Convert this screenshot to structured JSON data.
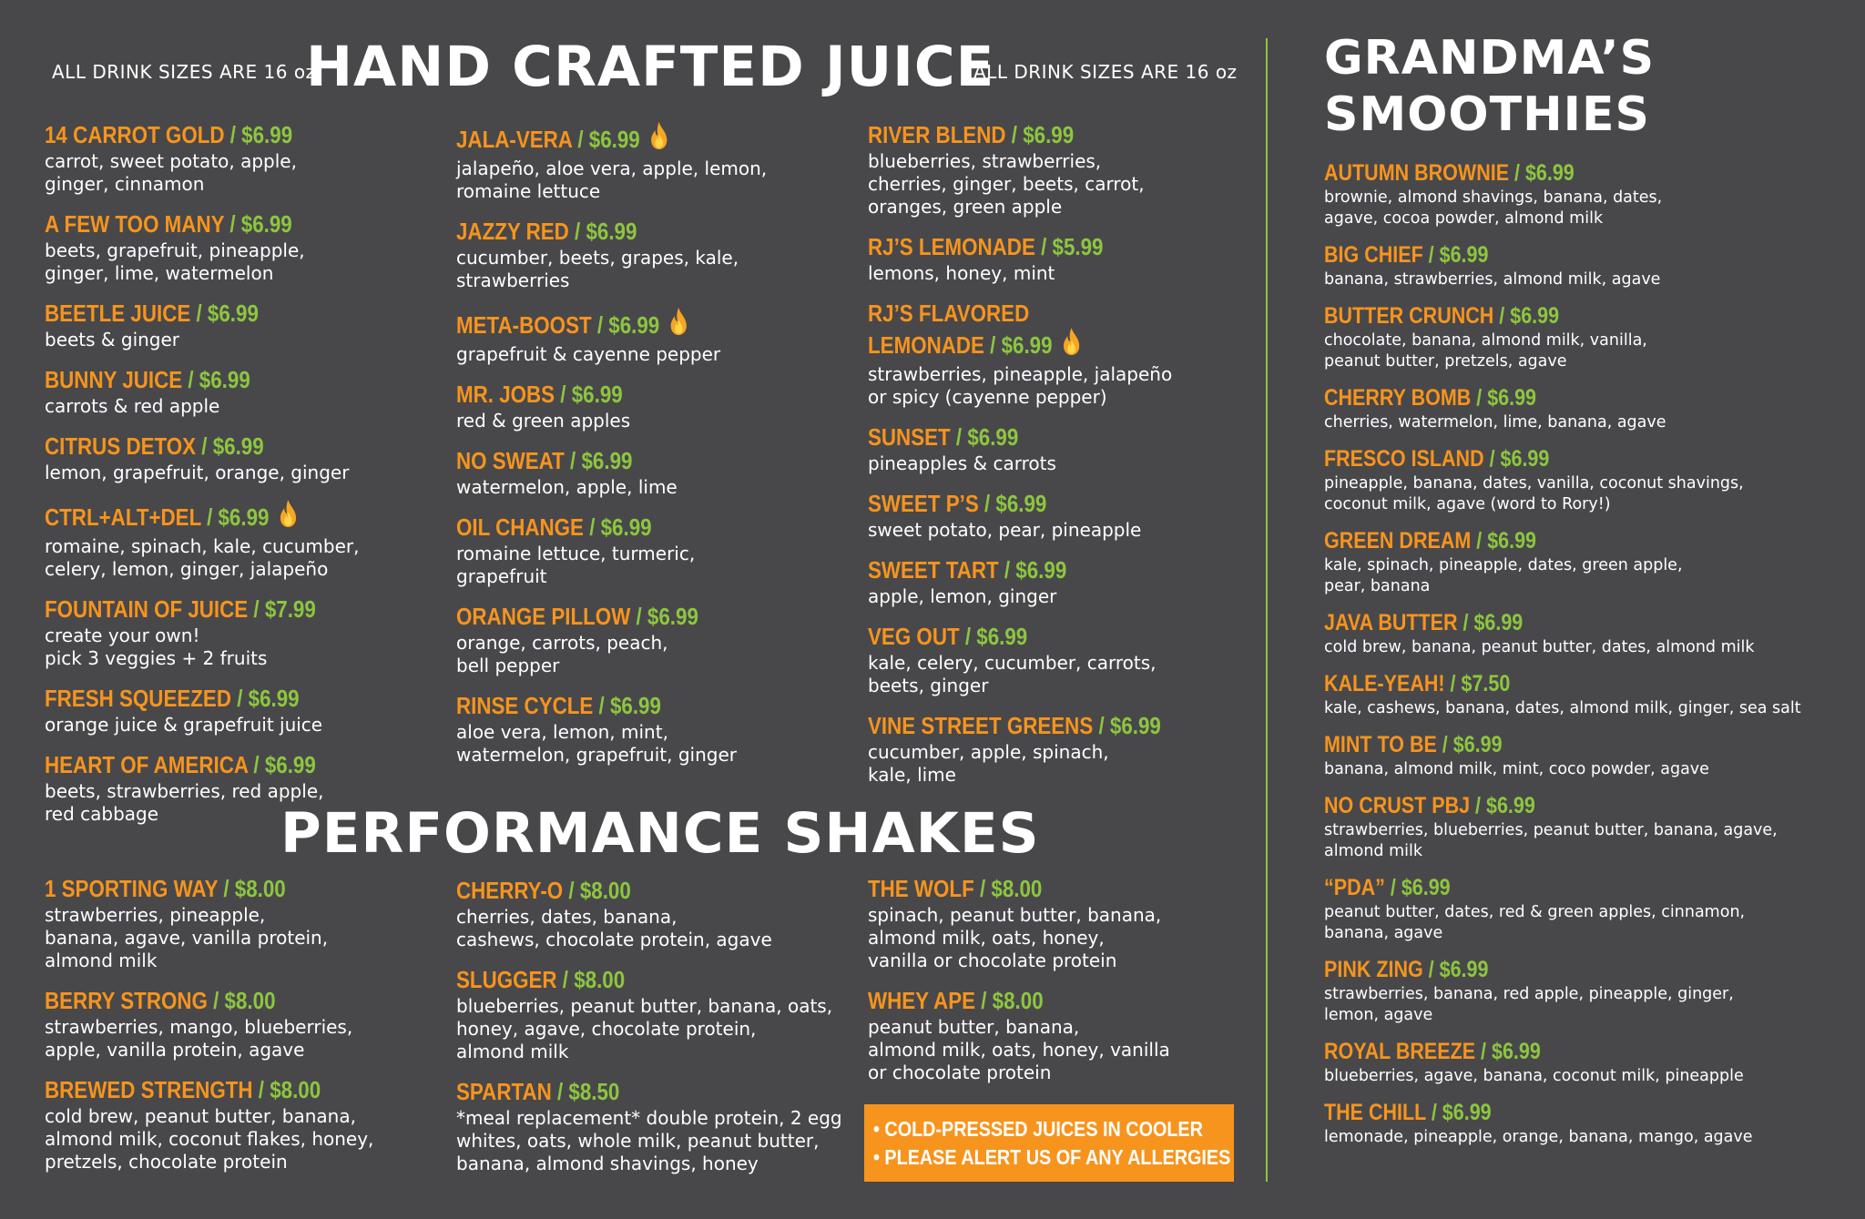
{
  "header": {
    "sizes_left": "ALL DRINK SIZES ARE 16 oz",
    "sizes_right": "ALL DRINK SIZES ARE 16 oz",
    "juice_title": "HAND CRAFTED JUICE",
    "shakes_title": "PERFORMANCE SHAKES",
    "smoothies_title_line1": "GRANDMA’S",
    "smoothies_title_line2": "SMOOTHIES"
  },
  "juice": {
    "col1": [
      {
        "name": "14 CARROT GOLD",
        "price": "$6.99",
        "desc": "carrot, sweet potato, apple,\nginger, cinnamon"
      },
      {
        "name": "A FEW TOO MANY",
        "price": "$6.99",
        "desc": "beets, grapefruit, pineapple,\nginger, lime, watermelon"
      },
      {
        "name": "BEETLE JUICE",
        "price": "$6.99",
        "desc": "beets & ginger"
      },
      {
        "name": "BUNNY  JUICE",
        "price": "$6.99",
        "desc": "carrots & red apple"
      },
      {
        "name": "CITRUS DETOX",
        "price": "$6.99",
        "desc": "lemon, grapefruit, orange, ginger"
      },
      {
        "name": "CTRL+ALT+DEL",
        "price": "$6.99",
        "desc": "romaine, spinach, kale, cucumber,\ncelery, lemon, ginger, jalapeño",
        "icon": "flame-icon"
      },
      {
        "name": "FOUNTAIN OF JUICE",
        "price": "$7.99",
        "desc": "create your own!\npick 3 veggies + 2 fruits"
      },
      {
        "name": "FRESH SQUEEZED",
        "price": "$6.99",
        "desc": "orange juice & grapefruit juice"
      },
      {
        "name": "HEART OF AMERICA",
        "price": "$6.99",
        "desc": "beets, strawberries, red apple,\nred cabbage"
      }
    ],
    "col2": [
      {
        "name": "JALA-VERA",
        "price": "$6.99",
        "desc": "jalapeño, aloe vera, apple, lemon,\nromaine lettuce",
        "icon": "flame-icon"
      },
      {
        "name": "JAZZY RED",
        "price": "$6.99",
        "desc": "cucumber, beets, grapes, kale,\nstrawberries"
      },
      {
        "name": "META-BOOST",
        "price": "$6.99",
        "desc": "grapefruit & cayenne pepper",
        "icon": "flame-icon"
      },
      {
        "name": "MR. JOBS",
        "price": "$6.99",
        "desc": "red & green apples"
      },
      {
        "name": "NO SWEAT",
        "price": "$6.99",
        "desc": "watermelon, apple, lime"
      },
      {
        "name": "OIL CHANGE",
        "price": "$6.99",
        "desc": "romaine lettuce, turmeric,\ngrapefruit"
      },
      {
        "name": "ORANGE PILLOW",
        "price": "$6.99",
        "desc": "orange, carrots, peach,\nbell pepper"
      },
      {
        "name": "RINSE CYCLE",
        "price": "$6.99",
        "desc": "aloe vera, lemon, mint,\nwatermelon, grapefruit, ginger"
      }
    ],
    "col3": [
      {
        "name": "RIVER BLEND",
        "price": "$6.99",
        "desc": "blueberries, strawberries,\ncherries, ginger, beets, carrot,\noranges, green apple"
      },
      {
        "name": "RJ’S LEMONADE",
        "price": "$5.99",
        "desc": "lemons, honey, mint"
      },
      {
        "name": "RJ’S FLAVORED",
        "name2": "LEMONADE",
        "price": "$6.99",
        "desc": "strawberries, pineapple, jalapeño\nor spicy (cayenne pepper)",
        "icon": "flame-icon"
      },
      {
        "name": "SUNSET",
        "price": "$6.99",
        "desc": "pineapples & carrots"
      },
      {
        "name": "SWEET P’S",
        "price": "$6.99",
        "desc": "sweet potato, pear, pineapple"
      },
      {
        "name": "SWEET TART",
        "price": "$6.99",
        "desc": "apple, lemon, ginger"
      },
      {
        "name": "VEG OUT",
        "price": "$6.99",
        "desc": "kale, celery, cucumber, carrots,\nbeets, ginger"
      },
      {
        "name": "VINE STREET GREENS",
        "price": "$6.99",
        "desc": "cucumber, apple, spinach,\nkale, lime"
      }
    ]
  },
  "shakes": {
    "col1": [
      {
        "name": "1 SPORTING WAY",
        "price": "$8.00",
        "desc": "strawberries, pineapple,\nbanana, agave, vanilla protein,\nalmond milk"
      },
      {
        "name": "BERRY STRONG",
        "price": "$8.00",
        "desc": "strawberries, mango, blueberries,\napple, vanilla protein, agave"
      },
      {
        "name": "BREWED STRENGTH",
        "price": "$8.00",
        "desc": "cold brew, peanut butter, banana,\nalmond milk, coconut flakes, honey,\npretzels, chocolate protein"
      }
    ],
    "col2": [
      {
        "name": "CHERRY-O",
        "price": "$8.00",
        "desc": "cherries, dates, banana,\ncashews, chocolate protein, agave"
      },
      {
        "name": "SLUGGER",
        "price": "$8.00",
        "desc": "blueberries, peanut butter, banana, oats,\nhoney, agave, chocolate protein,\nalmond milk"
      },
      {
        "name": "SPARTAN",
        "price": "$8.50",
        "desc": "*meal replacement* double protein, 2 egg\nwhites, oats, whole milk, peanut butter,\nbanana, almond shavings, honey"
      }
    ],
    "col3": [
      {
        "name": "THE WOLF",
        "price": "$8.00",
        "desc": "spinach, peanut butter, banana,\nalmond milk, oats, honey,\nvanilla or chocolate protein"
      },
      {
        "name": "WHEY APE",
        "price": "$8.00",
        "desc": "peanut butter, banana,\nalmond milk, oats, honey, vanilla\nor chocolate protein"
      }
    ]
  },
  "notice": {
    "line1": "• COLD-PRESSED JUICES IN COOLER",
    "line2": "• PLEASE ALERT US OF ANY ALLERGIES"
  },
  "smoothies": [
    {
      "name": "AUTUMN BROWNIE",
      "price": "$6.99",
      "desc": "brownie, almond shavings, banana, dates,\nagave, cocoa powder, almond milk"
    },
    {
      "name": "BIG CHIEF",
      "price": "$6.99",
      "desc": "banana, strawberries, almond milk, agave"
    },
    {
      "name": "BUTTER CRUNCH",
      "price": "$6.99",
      "desc": "chocolate, banana, almond milk, vanilla,\npeanut butter, pretzels, agave"
    },
    {
      "name": "CHERRY BOMB",
      "price": "$6.99",
      "desc": "cherries, watermelon, lime, banana, agave"
    },
    {
      "name": "FRESCO ISLAND",
      "price": "$6.99",
      "desc": "pineapple, banana, dates, vanilla, coconut shavings,\ncoconut milk, agave (word to Rory!)"
    },
    {
      "name": "GREEN DREAM",
      "price": "$6.99",
      "desc": "kale, spinach, pineapple, dates, green apple,\npear, banana"
    },
    {
      "name": "JAVA BUTTER",
      "price": "$6.99",
      "desc": "cold brew, banana, peanut butter, dates, almond milk"
    },
    {
      "name": "KALE-YEAH!",
      "price": "$7.50",
      "desc": "kale, cashews, banana, dates, almond milk, ginger, sea salt"
    },
    {
      "name": "MINT TO BE",
      "price": "$6.99",
      "desc": "banana, almond milk, mint, coco powder, agave"
    },
    {
      "name": "NO CRUST PBJ",
      "price": "$6.99",
      "desc": "strawberries, blueberries, peanut butter, banana, agave,\nalmond milk"
    },
    {
      "name": "“PDA”",
      "price": "$6.99",
      "desc": "peanut butter, dates, red & green apples, cinnamon,\nbanana, agave"
    },
    {
      "name": "PINK ZING",
      "price": "$6.99",
      "desc": "strawberries, banana, red apple, pineapple, ginger,\nlemon, agave"
    },
    {
      "name": "ROYAL BREEZE",
      "price": "$6.99",
      "desc": "blueberries, agave, banana, coconut milk, pineapple"
    },
    {
      "name": "THE CHILL",
      "price": "$6.99",
      "desc": "lemonade, pineapple, orange, banana, mango, agave"
    }
  ]
}
